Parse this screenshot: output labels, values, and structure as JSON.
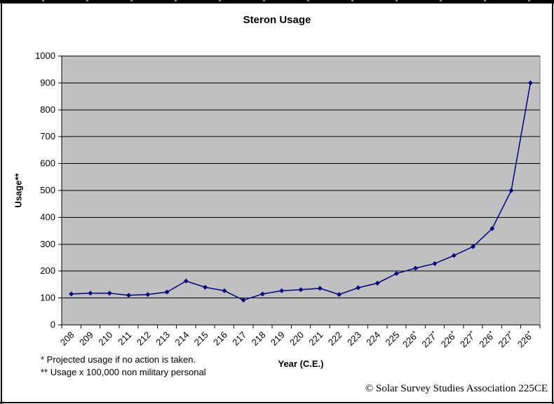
{
  "page": {
    "copyright": "© Solar Survey Studies Association 225CE"
  },
  "chart_data": {
    "type": "line",
    "title": "Steron Usage",
    "xlabel": "Year (C.E.)",
    "ylabel": "Usage**",
    "categories": [
      "208",
      "209",
      "210",
      "211",
      "212",
      "213",
      "214",
      "215",
      "216",
      "217",
      "218",
      "219",
      "220",
      "221",
      "222",
      "223",
      "224",
      "225",
      "226*",
      "227*",
      "226*",
      "227*",
      "226*",
      "227*",
      "226*"
    ],
    "values": [
      115,
      118,
      118,
      110,
      113,
      122,
      163,
      140,
      127,
      92,
      115,
      127,
      131,
      136,
      113,
      138,
      155,
      191,
      211,
      228,
      258,
      291,
      358,
      500,
      900
    ],
    "ylim": [
      0,
      1000
    ],
    "yticks": [
      0,
      100,
      200,
      300,
      400,
      500,
      600,
      700,
      800,
      900,
      1000
    ],
    "grid": "horizontal",
    "legend": "none",
    "line_color": "#000080",
    "marker": "diamond",
    "plot_bg": "#c0c0c0",
    "footnotes": [
      "* Projected usage if no action is taken.",
      "** Usage x 100,000 non military personal"
    ]
  }
}
